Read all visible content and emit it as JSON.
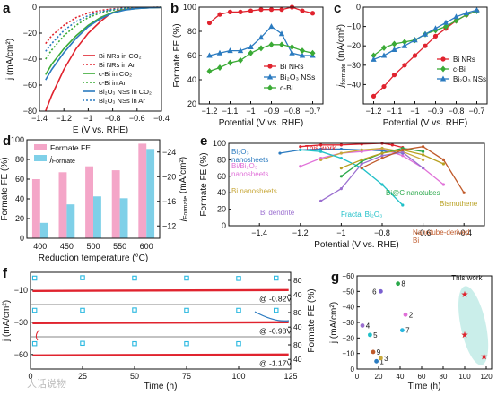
{
  "watermark": "人话说物",
  "chart_data": [
    {
      "panel": "a",
      "type": "line",
      "xlabel": "E (V vs. RHE)",
      "ylabel": "j (mA/cm²)",
      "xlim": [
        -1.4,
        -0.4
      ],
      "ylim": [
        -80,
        0
      ],
      "xticks": [
        -1.4,
        -1.2,
        -1.0,
        -0.8,
        -0.6,
        -0.4
      ],
      "yticks": [
        -80,
        -60,
        -40,
        -20,
        0
      ],
      "legend": "bottom-right",
      "series": [
        {
          "name": "Bi NRs in CO₂",
          "color": "#e0232e",
          "dash": false,
          "x": [
            -1.35,
            -1.3,
            -1.2,
            -1.1,
            -1.0,
            -0.9,
            -0.82,
            -0.75,
            -0.65,
            -0.55,
            -0.45,
            -0.4
          ],
          "y": [
            -80,
            -68,
            -48,
            -32,
            -20,
            -11,
            -5,
            -2.5,
            -1.2,
            -0.6,
            -0.3,
            -0.2
          ]
        },
        {
          "name": "Bi NRs in Ar",
          "color": "#e0232e",
          "dash": true,
          "x": [
            -1.35,
            -1.3,
            -1.2,
            -1.1,
            -1.0,
            -0.9,
            -0.8,
            -0.7,
            -0.6,
            -0.5,
            -0.4
          ],
          "y": [
            -28,
            -22,
            -14,
            -8,
            -4.5,
            -2.5,
            -1.3,
            -0.7,
            -0.4,
            -0.2,
            -0.1
          ]
        },
        {
          "name": "c-Bi in CO₂",
          "color": "#3aaa35",
          "dash": false,
          "x": [
            -1.35,
            -1.3,
            -1.2,
            -1.1,
            -1.0,
            -0.9,
            -0.8,
            -0.7,
            -0.6,
            -0.5,
            -0.4
          ],
          "y": [
            -52,
            -44,
            -32,
            -22,
            -14,
            -8,
            -4,
            -2,
            -1,
            -0.5,
            -0.2
          ]
        },
        {
          "name": "c-Bi in Ar",
          "color": "#3aaa35",
          "dash": true,
          "x": [
            -1.35,
            -1.3,
            -1.2,
            -1.1,
            -1.0,
            -0.9,
            -0.8,
            -0.7,
            -0.6,
            -0.5,
            -0.4
          ],
          "y": [
            -40,
            -33,
            -22,
            -14,
            -8,
            -4.5,
            -2.3,
            -1.1,
            -0.5,
            -0.3,
            -0.1
          ]
        },
        {
          "name": "Bi₂O₃ NSs in CO₂",
          "color": "#2b7bc0",
          "dash": false,
          "x": [
            -1.35,
            -1.3,
            -1.2,
            -1.1,
            -1.0,
            -0.9,
            -0.8,
            -0.7,
            -0.6,
            -0.5,
            -0.4
          ],
          "y": [
            -56,
            -48,
            -35,
            -24,
            -15,
            -9,
            -4.5,
            -2.2,
            -1,
            -0.5,
            -0.2
          ]
        },
        {
          "name": "Bi₂O₃ NSs in Ar",
          "color": "#2b7bc0",
          "dash": true,
          "x": [
            -1.35,
            -1.3,
            -1.2,
            -1.1,
            -1.0,
            -0.9,
            -0.8,
            -0.7,
            -0.6,
            -0.5,
            -0.4
          ],
          "y": [
            -34,
            -28,
            -18,
            -11,
            -6.5,
            -3.5,
            -1.8,
            -0.9,
            -0.4,
            -0.2,
            -0.1
          ]
        }
      ]
    },
    {
      "panel": "b",
      "type": "line",
      "xlabel": "Potential (V vs. RHE)",
      "ylabel": "Formate FE (%)",
      "xlim": [
        -1.25,
        -0.65
      ],
      "ylim": [
        20,
        100
      ],
      "xticks": [
        -1.2,
        -1.1,
        -1.0,
        -0.9,
        -0.8,
        -0.7
      ],
      "yticks": [
        20,
        40,
        60,
        80,
        100
      ],
      "legend": "center-right",
      "series": [
        {
          "name": "Bi NRs",
          "color": "#e0232e",
          "marker": "circle",
          "x": [
            -1.2,
            -1.15,
            -1.1,
            -1.05,
            -1.0,
            -0.95,
            -0.9,
            -0.85,
            -0.8,
            -0.75,
            -0.7
          ],
          "y": [
            87,
            94,
            96,
            96,
            97,
            98,
            98,
            98,
            100,
            97,
            95
          ]
        },
        {
          "name": "Bi₂O₃ NSs",
          "color": "#2b7bc0",
          "marker": "triangle",
          "x": [
            -1.2,
            -1.15,
            -1.1,
            -1.05,
            -1.0,
            -0.95,
            -0.9,
            -0.85,
            -0.8,
            -0.75,
            -0.7
          ],
          "y": [
            60,
            62,
            64,
            64,
            67,
            75,
            84,
            78,
            62,
            60,
            60
          ]
        },
        {
          "name": "c-Bi",
          "color": "#3aaa35",
          "marker": "diamond",
          "x": [
            -1.2,
            -1.15,
            -1.1,
            -1.05,
            -1.0,
            -0.95,
            -0.9,
            -0.85,
            -0.8,
            -0.75,
            -0.7
          ],
          "y": [
            47,
            50,
            54,
            56,
            62,
            66,
            69,
            69,
            67,
            64,
            62
          ]
        }
      ]
    },
    {
      "panel": "c",
      "type": "line",
      "xlabel": "Potential (V vs. RHE)",
      "ylabel": "j_formate (mA/cm²)",
      "xlim": [
        -1.25,
        -0.65
      ],
      "ylim": [
        -50,
        0
      ],
      "xticks": [
        -1.2,
        -1.1,
        -1.0,
        -0.9,
        -0.8,
        -0.7
      ],
      "yticks": [
        -40,
        -30,
        -20,
        -10,
        0
      ],
      "legend": "bottom-right",
      "series": [
        {
          "name": "Bi NRs",
          "color": "#e0232e",
          "marker": "circle",
          "x": [
            -1.2,
            -1.15,
            -1.1,
            -1.05,
            -1.0,
            -0.95,
            -0.9,
            -0.85,
            -0.8,
            -0.75,
            -0.7
          ],
          "y": [
            -46,
            -41,
            -35,
            -30,
            -25,
            -20,
            -15,
            -11,
            -7,
            -4,
            -2
          ]
        },
        {
          "name": "c-Bi",
          "color": "#3aaa35",
          "marker": "diamond",
          "x": [
            -1.2,
            -1.15,
            -1.1,
            -1.05,
            -1.0,
            -0.95,
            -0.9,
            -0.85,
            -0.8,
            -0.75,
            -0.7
          ],
          "y": [
            -25,
            -21,
            -19,
            -18,
            -17,
            -14,
            -12,
            -10,
            -7,
            -4,
            -2
          ]
        },
        {
          "name": "Bi₂O₃ NSs",
          "color": "#2b7bc0",
          "marker": "triangle",
          "x": [
            -1.2,
            -1.15,
            -1.1,
            -1.05,
            -1.0,
            -0.95,
            -0.9,
            -0.85,
            -0.8,
            -0.75,
            -0.7
          ],
          "y": [
            -27,
            -25,
            -22,
            -20,
            -17,
            -14,
            -11,
            -8,
            -5,
            -3,
            -1.5
          ]
        }
      ]
    },
    {
      "panel": "d",
      "type": "bar",
      "xlabel": "Reduction temperature (°C)",
      "ylabel": "Formate FE (%)",
      "ylabel2": "j_Formate (mA/cm²)",
      "categories": [
        "400",
        "450",
        "500",
        "550",
        "600"
      ],
      "ylim": [
        0,
        100
      ],
      "ylim2": [
        -10,
        -26
      ],
      "yticks": [
        0,
        20,
        40,
        60,
        80,
        100
      ],
      "yticks2": [
        -12,
        -16,
        -20,
        -24
      ],
      "legend": "top-left",
      "series": [
        {
          "name": "Formate FE",
          "color": "#f4a6c8",
          "axis": "left",
          "values": [
            60,
            67,
            73,
            69,
            96
          ]
        },
        {
          "name": "j_Formate",
          "color": "#7fd0e8",
          "axis": "right",
          "values": [
            -12.5,
            -15.5,
            -16.8,
            -16.5,
            -24.5
          ]
        }
      ]
    },
    {
      "panel": "e",
      "type": "line",
      "xlabel": "Potential (V vs. RHE)",
      "ylabel": "Formate FE (%)",
      "xlim": [
        -1.55,
        -0.3
      ],
      "ylim": [
        0,
        100
      ],
      "xticks": [
        -1.4,
        -1.2,
        -1.0,
        -0.8,
        -0.6,
        -0.4
      ],
      "yticks": [
        0,
        20,
        40,
        60,
        80,
        100
      ],
      "series": [
        {
          "name": "This work",
          "color": "#e0232e",
          "x": [
            -1.2,
            -1.1,
            -1.0,
            -0.9,
            -0.8,
            -0.75,
            -0.7
          ],
          "y": [
            96,
            98,
            98,
            99,
            100,
            98,
            95
          ]
        },
        {
          "name": "Bi₂O₃ nanosheets",
          "color": "#2b7bc0",
          "x": [
            -1.3,
            -1.2,
            -1.1,
            -1.0,
            -0.9,
            -0.8,
            -0.7
          ],
          "y": [
            88,
            92,
            93,
            93,
            92,
            91,
            88
          ]
        },
        {
          "name": "Bi/Bi₂O₃ nanosheets",
          "color": "#e070d8",
          "x": [
            -1.2,
            -1.1,
            -1.0,
            -0.9,
            -0.8,
            -0.7,
            -0.6,
            -0.5
          ],
          "y": [
            72,
            82,
            88,
            90,
            93,
            85,
            70,
            50
          ]
        },
        {
          "name": "Bi nanosheets",
          "color": "#c8a83a",
          "x": [
            -1.1,
            -1.0,
            -0.9,
            -0.8,
            -0.7,
            -0.6
          ],
          "y": [
            80,
            88,
            92,
            94,
            90,
            80
          ]
        },
        {
          "name": "Bi dendrite",
          "color": "#9b6fd0",
          "x": [
            -1.1,
            -1.0,
            -0.9,
            -0.8,
            -0.7,
            -0.6
          ],
          "y": [
            30,
            45,
            75,
            85,
            89,
            70
          ]
        },
        {
          "name": "Fractal Bi₂O₃",
          "color": "#20c0c8",
          "x": [
            -1.2,
            -1.1,
            -1.0,
            -0.9,
            -0.8,
            -0.7
          ],
          "y": [
            92,
            90,
            82,
            70,
            50,
            25
          ]
        },
        {
          "name": "Bi@C nanotubes",
          "color": "#2aa84a",
          "x": [
            -1.0,
            -0.9,
            -0.8,
            -0.7,
            -0.6
          ],
          "y": [
            60,
            78,
            88,
            94,
            90
          ]
        },
        {
          "name": "Bismuthene",
          "color": "#b8a020",
          "x": [
            -1.0,
            -0.9,
            -0.8,
            -0.7,
            -0.6,
            -0.5
          ],
          "y": [
            70,
            80,
            88,
            92,
            86,
            75
          ]
        },
        {
          "name": "Nanotube-derived Bi",
          "color": "#c05a2a",
          "x": [
            -0.9,
            -0.8,
            -0.7,
            -0.6,
            -0.5,
            -0.4
          ],
          "y": [
            70,
            82,
            92,
            96,
            80,
            40
          ]
        }
      ]
    },
    {
      "panel": "f",
      "type": "line",
      "xlabel": "Time (h)",
      "ylabel": "j (mA/cm²)",
      "ylabel2": "Formate FE (%)",
      "xlim": [
        0,
        125
      ],
      "xticks": [
        0,
        25,
        50,
        75,
        100,
        125
      ],
      "subplots": [
        {
          "label": "@ -0.82V",
          "yticks": [
            -10
          ],
          "yticks2": [
            40,
            80
          ],
          "j_level": -8,
          "fe_level": 95,
          "fe_x": [
            2,
            25,
            50,
            75,
            100,
            118
          ],
          "fe_y": [
            95,
            96,
            95,
            95,
            94,
            95
          ]
        },
        {
          "label": "@ -0.98V",
          "yticks": [
            -30
          ],
          "yticks2": [
            40,
            80
          ],
          "j_level": -30,
          "fe_level": 95,
          "fe_x": [
            2,
            25,
            50,
            75,
            100,
            118
          ],
          "fe_y": [
            95,
            95,
            96,
            95,
            95,
            95
          ]
        },
        {
          "label": "@ -1.17V",
          "yticks": [
            -60
          ],
          "yticks2": [
            40,
            80
          ],
          "j_level": -58,
          "fe_level": 92,
          "fe_x": [
            2,
            25,
            50,
            75,
            100
          ],
          "fe_y": [
            92,
            93,
            92,
            92,
            92
          ]
        }
      ],
      "ylim_full": [
        -70,
        0
      ]
    },
    {
      "panel": "g",
      "type": "scatter",
      "xlabel": "Time (h)",
      "ylabel": "j (mA/cm²)",
      "xlim": [
        0,
        125
      ],
      "ylim": [
        0,
        -60
      ],
      "xticks": [
        0,
        20,
        40,
        60,
        80,
        100,
        120
      ],
      "yticks": [
        0,
        -10,
        -20,
        -30,
        -40,
        -50,
        -60
      ],
      "annotation": "This work",
      "points": [
        {
          "label": "1",
          "x": 18,
          "y": -5,
          "color": "#2b7bc0"
        },
        {
          "label": "2",
          "x": 45,
          "y": -35,
          "color": "#e070d8"
        },
        {
          "label": "3",
          "x": 22,
          "y": -7,
          "color": "#c8a83a"
        },
        {
          "label": "4",
          "x": 5,
          "y": -28,
          "color": "#9b6fd0"
        },
        {
          "label": "5",
          "x": 12,
          "y": -22,
          "color": "#20c0c8"
        },
        {
          "label": "6",
          "x": 22,
          "y": -50,
          "color": "#7a5fd0"
        },
        {
          "label": "7",
          "x": 42,
          "y": -25,
          "color": "#2ab8e0"
        },
        {
          "label": "8",
          "x": 38,
          "y": -55,
          "color": "#2aa84a"
        },
        {
          "label": "9",
          "x": 15,
          "y": -11,
          "color": "#c05a2a"
        },
        {
          "label": "",
          "x": 100,
          "y": -48,
          "color": "#e0232e",
          "star": true
        },
        {
          "label": "",
          "x": 100,
          "y": -22,
          "color": "#e0232e",
          "star": true
        },
        {
          "label": "",
          "x": 118,
          "y": -8,
          "color": "#e0232e",
          "star": true
        }
      ]
    }
  ]
}
